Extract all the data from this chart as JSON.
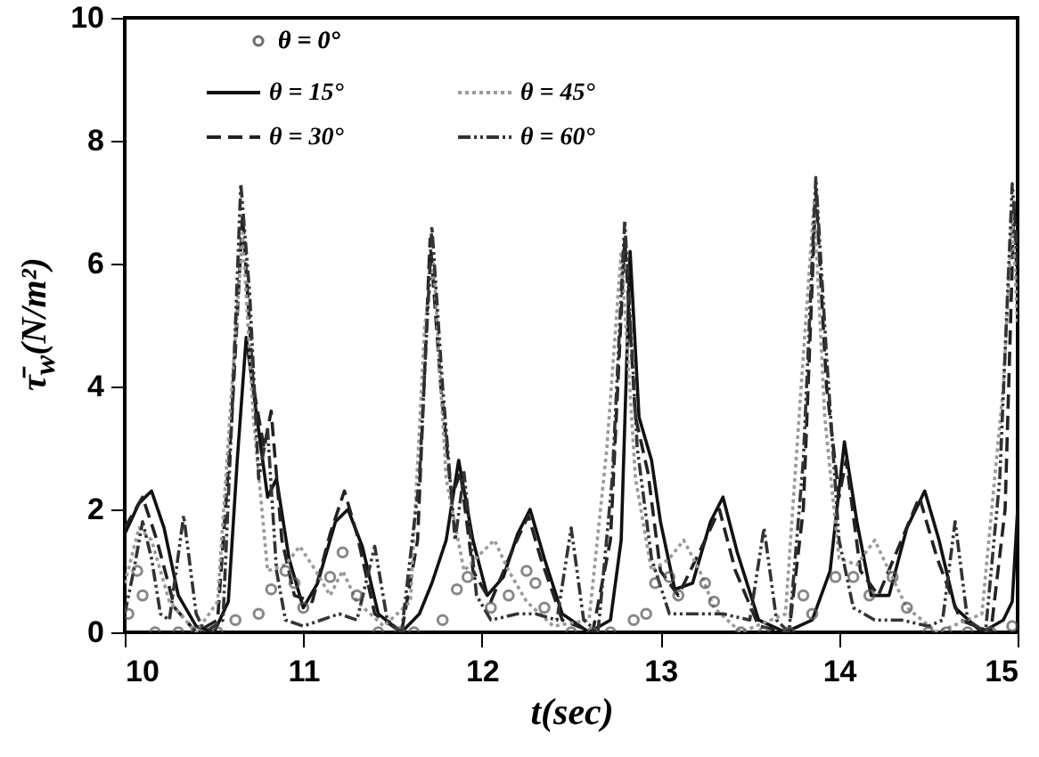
{
  "chart_data": {
    "type": "line",
    "xlabel": "t(sec)",
    "ylabel": "τ̄$_{w}$(N/m²)",
    "xlim": [
      10,
      15
    ],
    "ylim": [
      0,
      10
    ],
    "xticks": [
      {
        "value": 10,
        "label": "10"
      },
      {
        "value": 11,
        "label": "11"
      },
      {
        "value": 12,
        "label": "12"
      },
      {
        "value": 13,
        "label": "13"
      },
      {
        "value": 14,
        "label": "14"
      },
      {
        "value": 15,
        "label": "15"
      }
    ],
    "yticks": [
      0,
      2,
      4,
      6,
      8,
      10
    ],
    "grid": false,
    "legend": "top",
    "series": [
      {
        "name": "θ = 0°",
        "type": "scatter",
        "marker": "circle",
        "color": "#555555",
        "x": [
          10.02,
          10.07,
          10.1,
          10.17,
          10.3,
          10.4,
          10.52,
          10.62,
          10.75,
          10.82,
          10.9,
          10.95,
          11.0,
          11.15,
          11.22,
          11.3,
          11.42,
          11.54,
          11.62,
          11.78,
          11.86,
          11.92,
          12.05,
          12.15,
          12.25,
          12.3,
          12.35,
          12.5,
          12.62,
          12.72,
          12.85,
          12.92,
          12.97,
          13.05,
          13.1,
          13.25,
          13.3,
          13.45,
          13.58,
          13.72,
          13.8,
          13.85,
          13.98,
          14.08,
          14.17,
          14.3,
          14.38,
          14.5,
          14.6,
          14.72,
          14.85,
          14.97
        ],
        "values": [
          0.3,
          1.0,
          0.6,
          0,
          0,
          0,
          0,
          0.2,
          0.3,
          0.7,
          1.0,
          0.8,
          0.4,
          0.9,
          1.3,
          0.6,
          0,
          0,
          0,
          0.2,
          0.7,
          0.9,
          0.4,
          0.6,
          1.0,
          0.8,
          0.4,
          0,
          0,
          0,
          0.2,
          0.3,
          0.8,
          0.9,
          0.6,
          0.8,
          0.5,
          0,
          0,
          0,
          0.6,
          0.3,
          0.9,
          0.9,
          0.6,
          0.9,
          0.4,
          0,
          0,
          0,
          0,
          0.1
        ]
      },
      {
        "name": "θ = 15°",
        "line_style": "solid",
        "color": "#111111",
        "x": [
          10.0,
          10.08,
          10.15,
          10.22,
          10.3,
          10.4,
          10.5,
          10.58,
          10.63,
          10.68,
          10.74,
          10.8,
          10.85,
          10.92,
          11.0,
          11.08,
          11.18,
          11.25,
          11.33,
          11.42,
          11.55,
          11.65,
          11.72,
          11.8,
          11.87,
          11.95,
          12.03,
          12.12,
          12.2,
          12.27,
          12.35,
          12.45,
          12.6,
          12.72,
          12.78,
          12.83,
          12.88,
          12.95,
          13.0,
          13.08,
          13.18,
          13.28,
          13.35,
          13.43,
          13.55,
          13.7,
          13.85,
          13.95,
          14.03,
          14.1,
          14.18,
          14.28,
          14.38,
          14.48,
          14.56,
          14.65,
          14.8,
          14.92,
          14.97,
          15.0
        ],
        "values": [
          1.6,
          2.1,
          2.3,
          1.7,
          0.6,
          0.1,
          0,
          0.5,
          2.8,
          4.8,
          3.5,
          2.2,
          2.5,
          1.2,
          0.4,
          0.8,
          1.8,
          2.0,
          1.4,
          0.3,
          0,
          0.3,
          0.8,
          1.5,
          2.8,
          1.5,
          0.6,
          0.9,
          1.6,
          2.0,
          1.2,
          0.3,
          0,
          0.2,
          1.5,
          6.2,
          3.5,
          2.8,
          1.8,
          0.7,
          0.8,
          1.8,
          2.2,
          1.3,
          0.2,
          0,
          0.2,
          1.0,
          3.1,
          1.8,
          0.6,
          0.6,
          1.7,
          2.3,
          1.5,
          0.4,
          0,
          0.2,
          0.5,
          2.0
        ]
      },
      {
        "name": "θ = 30°",
        "line_style": "dashed",
        "color": "#222222",
        "x": [
          10.0,
          10.1,
          10.18,
          10.28,
          10.4,
          10.52,
          10.6,
          10.66,
          10.72,
          10.78,
          10.82,
          10.88,
          10.95,
          11.05,
          11.15,
          11.23,
          11.3,
          11.4,
          11.55,
          11.64,
          11.71,
          11.77,
          11.83,
          11.88,
          11.95,
          12.05,
          12.18,
          12.26,
          12.33,
          12.45,
          12.62,
          12.72,
          12.8,
          12.86,
          12.93,
          13.0,
          13.1,
          13.25,
          13.33,
          13.42,
          13.55,
          13.72,
          13.8,
          13.87,
          13.93,
          14.0,
          14.04,
          14.12,
          14.22,
          14.35,
          14.45,
          14.55,
          14.68,
          14.85,
          14.93,
          14.98,
          15.0
        ],
        "values": [
          1.7,
          2.2,
          1.5,
          0.4,
          0,
          0.2,
          3.5,
          6.8,
          4.0,
          3.0,
          3.6,
          1.5,
          0.6,
          0.5,
          1.6,
          2.3,
          1.6,
          0.3,
          0,
          1.5,
          6.4,
          4.0,
          2.2,
          2.6,
          1.0,
          0.5,
          1.4,
          1.9,
          1.2,
          0.2,
          0,
          1.5,
          6.4,
          3.5,
          2.6,
          1.0,
          0.6,
          1.5,
          2.0,
          1.0,
          0.1,
          0,
          2.0,
          7.2,
          4.0,
          2.2,
          2.8,
          1.0,
          0.6,
          1.5,
          2.2,
          1.2,
          0.2,
          0,
          2.0,
          7.0,
          5.5
        ]
      },
      {
        "name": "θ = 45°",
        "line_style": "dotted",
        "color": "#999999",
        "x": [
          10.0,
          10.08,
          10.15,
          10.25,
          10.4,
          10.52,
          10.6,
          10.66,
          10.72,
          10.8,
          10.9,
          10.98,
          11.07,
          11.15,
          11.22,
          11.3,
          11.45,
          11.6,
          11.68,
          11.73,
          11.8,
          11.9,
          12.0,
          12.07,
          12.15,
          12.25,
          12.4,
          12.6,
          12.7,
          12.78,
          12.86,
          12.95,
          13.05,
          13.13,
          13.22,
          13.3,
          13.45,
          13.7,
          13.8,
          13.86,
          13.92,
          14.0,
          14.1,
          14.2,
          14.28,
          14.38,
          14.55,
          14.8,
          14.92,
          14.97,
          15.0
        ],
        "values": [
          0.8,
          1.7,
          1.5,
          0.5,
          0,
          0.5,
          4.0,
          6.5,
          3.5,
          1.0,
          1.1,
          1.4,
          1.0,
          0.6,
          1.0,
          0.5,
          0.1,
          0.5,
          5.0,
          6.0,
          2.5,
          1.0,
          1.3,
          1.5,
          1.0,
          0.5,
          0.1,
          0.2,
          3.0,
          6.2,
          2.5,
          1.0,
          1.2,
          1.5,
          1.0,
          0.4,
          0,
          0.3,
          4.5,
          7.0,
          3.5,
          1.2,
          1.1,
          1.5,
          1.0,
          0.4,
          0,
          0.3,
          4.0,
          6.8,
          5.0
        ]
      },
      {
        "name": "θ = 60°",
        "line_style": "dashdot",
        "color": "#333333",
        "x": [
          10.0,
          10.05,
          10.1,
          10.15,
          10.2,
          10.25,
          10.33,
          10.4,
          10.45,
          10.55,
          10.6,
          10.65,
          10.7,
          10.75,
          10.8,
          10.85,
          10.9,
          11.0,
          11.1,
          11.2,
          11.3,
          11.4,
          11.47,
          11.55,
          11.65,
          11.72,
          11.78,
          11.85,
          11.9,
          11.97,
          12.05,
          12.2,
          12.3,
          12.42,
          12.5,
          12.57,
          12.65,
          12.73,
          12.8,
          12.87,
          12.95,
          13.05,
          13.2,
          13.35,
          13.5,
          13.58,
          13.65,
          13.72,
          13.8,
          13.87,
          13.93,
          14.0,
          14.08,
          14.2,
          14.35,
          14.5,
          14.58,
          14.65,
          14.72,
          14.82,
          14.9,
          14.97,
          15.0
        ],
        "values": [
          0.3,
          1.0,
          1.8,
          1.2,
          0.3,
          0.2,
          1.9,
          0.3,
          0,
          0.2,
          3.5,
          7.3,
          5.5,
          2.5,
          3.3,
          1.0,
          0.2,
          0.1,
          0.2,
          0.3,
          0.2,
          1.4,
          0.2,
          0,
          2.5,
          6.6,
          4.0,
          1.5,
          2.6,
          0.6,
          0.2,
          0.3,
          0.3,
          0.2,
          1.7,
          0.2,
          0,
          2.5,
          6.7,
          3.0,
          1.2,
          0.3,
          0.3,
          0.3,
          0.2,
          1.7,
          0.2,
          0,
          2.8,
          7.4,
          4.5,
          1.5,
          0.4,
          0.2,
          0.2,
          0.1,
          0.2,
          1.8,
          0.2,
          0,
          2.5,
          7.3,
          6.0
        ]
      }
    ]
  }
}
